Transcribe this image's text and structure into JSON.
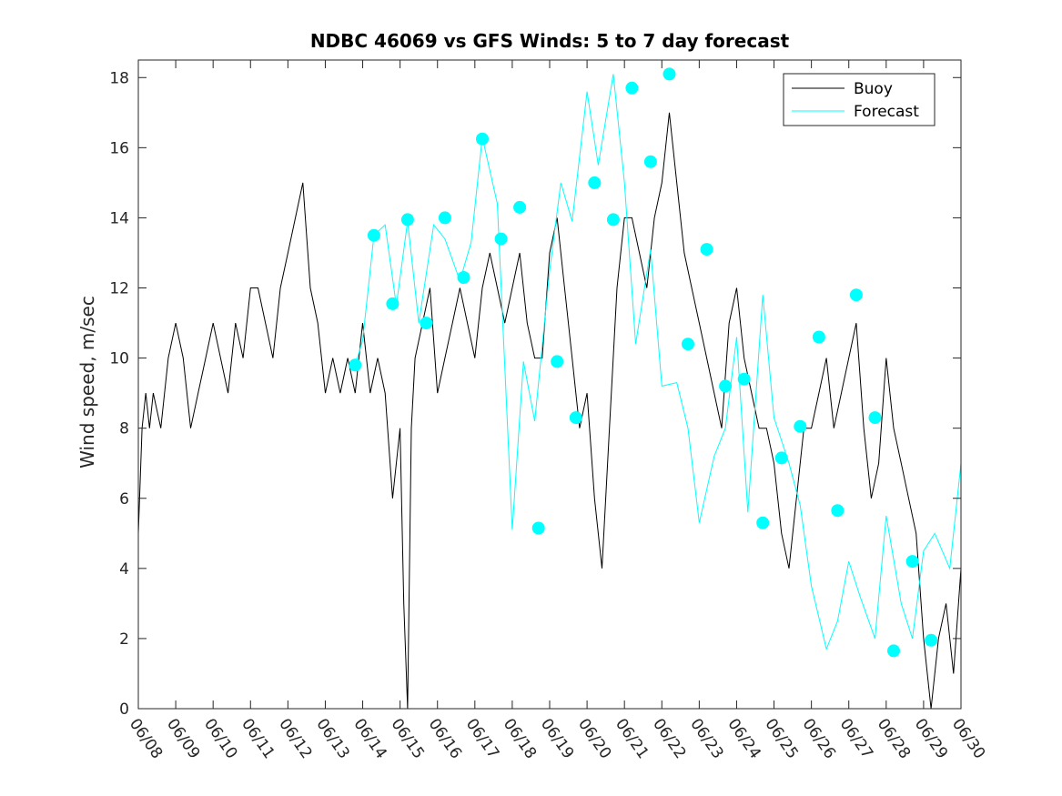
{
  "chart_data": {
    "type": "line",
    "title": "NDBC 46069 vs GFS Winds: 5 to 7 day forecast",
    "xlabel": "",
    "ylabel": "Wind speed, m/sec",
    "x_tick_labels": [
      "06/08",
      "06/09",
      "06/10",
      "06/11",
      "06/12",
      "06/13",
      "06/14",
      "06/15",
      "06/16",
      "06/17",
      "06/18",
      "06/19",
      "06/20",
      "06/21",
      "06/22",
      "06/23",
      "06/24",
      "06/25",
      "06/26",
      "06/27",
      "06/28",
      "06/29",
      "06/30"
    ],
    "xlim_days": [
      0,
      22
    ],
    "ylim": [
      0,
      18.5
    ],
    "y_ticks": [
      0,
      2,
      4,
      6,
      8,
      10,
      12,
      14,
      16,
      18
    ],
    "grid": false,
    "legend": "top-right",
    "colors": {
      "buoy": "#000000",
      "forecast": "#00ffff"
    },
    "series": [
      {
        "name": "Buoy",
        "x": [
          0,
          0.1,
          0.2,
          0.3,
          0.4,
          0.6,
          0.8,
          1.0,
          1.2,
          1.4,
          1.6,
          1.8,
          2.0,
          2.2,
          2.4,
          2.6,
          2.8,
          3.0,
          3.2,
          3.4,
          3.6,
          3.8,
          4.0,
          4.2,
          4.4,
          4.6,
          4.8,
          5.0,
          5.2,
          5.4,
          5.6,
          5.8,
          6.0,
          6.2,
          6.4,
          6.6,
          6.8,
          7.0,
          7.1,
          7.2,
          7.3,
          7.4,
          7.6,
          7.8,
          8.0,
          8.2,
          8.4,
          8.6,
          8.8,
          9.0,
          9.2,
          9.4,
          9.6,
          9.8,
          10.0,
          10.2,
          10.4,
          10.6,
          10.8,
          11.0,
          11.2,
          11.4,
          11.6,
          11.8,
          12.0,
          12.2,
          12.4,
          12.6,
          12.8,
          13.0,
          13.2,
          13.4,
          13.6,
          13.8,
          14.0,
          14.2,
          14.4,
          14.6,
          14.8,
          15.0,
          15.2,
          15.4,
          15.6,
          15.8,
          16.0,
          16.2,
          16.4,
          16.6,
          16.8,
          17.0,
          17.2,
          17.4,
          17.6,
          17.8,
          18.0,
          18.2,
          18.4,
          18.6,
          18.8,
          19.0,
          19.2,
          19.4,
          19.6,
          19.8,
          20.0,
          20.2,
          20.4,
          20.6,
          20.8,
          21.0,
          21.2,
          21.4,
          21.6,
          21.8,
          22.0
        ],
        "values": [
          5,
          8,
          9,
          8,
          9,
          8,
          10,
          11,
          10,
          8,
          9,
          10,
          11,
          10,
          9,
          11,
          10,
          12,
          12,
          11,
          10,
          12,
          13,
          14,
          15,
          12,
          11,
          9,
          10,
          9,
          10,
          9,
          11,
          9,
          10,
          9,
          6,
          8,
          3,
          0,
          8,
          10,
          11,
          12,
          9,
          10,
          11,
          12,
          11,
          10,
          12,
          13,
          12,
          11,
          12,
          13,
          11,
          10,
          10,
          13,
          14,
          12,
          10,
          8,
          9,
          6,
          4,
          8,
          12,
          14,
          14,
          13,
          12,
          14,
          15,
          17,
          15,
          13,
          12,
          11,
          10,
          9,
          8,
          11,
          12,
          10,
          9,
          8,
          8,
          7,
          5,
          4,
          6,
          8,
          8,
          9,
          10,
          8,
          9,
          10,
          11,
          8,
          6,
          7,
          10,
          8,
          7,
          6,
          5,
          2,
          0,
          2,
          3,
          1,
          4
        ]
      },
      {
        "name": "Forecast",
        "x": [
          5.8,
          6.0,
          6.3,
          6.6,
          6.9,
          7.2,
          7.5,
          7.9,
          8.2,
          8.6,
          8.9,
          9.2,
          9.6,
          10.0,
          10.3,
          10.6,
          11.0,
          11.3,
          11.6,
          12.0,
          12.3,
          12.7,
          13.0,
          13.3,
          13.7,
          14.0,
          14.4,
          14.7,
          15.0,
          15.4,
          15.7,
          16.0,
          16.3,
          16.7,
          17.0,
          17.4,
          17.7,
          18.0,
          18.4,
          18.7,
          19.0,
          19.3,
          19.7,
          20.0,
          20.4,
          20.7,
          21.0,
          21.3,
          21.7,
          22.0
        ],
        "values": [
          9.8,
          10.5,
          13.5,
          13.8,
          11.5,
          13.9,
          11.0,
          13.8,
          13.4,
          12.2,
          13.3,
          16.3,
          14.4,
          5.1,
          9.9,
          8.2,
          12.5,
          15.0,
          13.9,
          17.6,
          15.5,
          18.1,
          15.0,
          10.4,
          13.1,
          9.2,
          9.3,
          8.0,
          5.3,
          7.2,
          8.0,
          10.6,
          5.6,
          11.8,
          8.3,
          7.0,
          5.8,
          3.5,
          1.7,
          2.5,
          4.2,
          3.2,
          2.0,
          5.5,
          3.0,
          2.0,
          4.5,
          5.0,
          4.0,
          7.0
        ],
        "markers": [
          {
            "x": 5.8,
            "y": 9.8
          },
          {
            "x": 6.3,
            "y": 13.5
          },
          {
            "x": 6.8,
            "y": 11.55
          },
          {
            "x": 7.2,
            "y": 13.95
          },
          {
            "x": 7.7,
            "y": 11.0
          },
          {
            "x": 8.2,
            "y": 14.0
          },
          {
            "x": 8.7,
            "y": 12.3
          },
          {
            "x": 9.2,
            "y": 16.25
          },
          {
            "x": 9.7,
            "y": 13.4
          },
          {
            "x": 10.2,
            "y": 14.3
          },
          {
            "x": 10.7,
            "y": 5.15
          },
          {
            "x": 11.2,
            "y": 9.9
          },
          {
            "x": 11.7,
            "y": 8.3
          },
          {
            "x": 12.2,
            "y": 15.0
          },
          {
            "x": 12.7,
            "y": 13.95
          },
          {
            "x": 13.2,
            "y": 17.7
          },
          {
            "x": 13.7,
            "y": 15.6
          },
          {
            "x": 14.2,
            "y": 18.1
          },
          {
            "x": 14.7,
            "y": 10.4
          },
          {
            "x": 15.2,
            "y": 13.1
          },
          {
            "x": 15.7,
            "y": 9.2
          },
          {
            "x": 16.2,
            "y": 9.4
          },
          {
            "x": 16.7,
            "y": 5.3
          },
          {
            "x": 17.2,
            "y": 7.15
          },
          {
            "x": 17.7,
            "y": 8.05
          },
          {
            "x": 18.2,
            "y": 10.6
          },
          {
            "x": 18.7,
            "y": 5.65
          },
          {
            "x": 19.2,
            "y": 11.8
          },
          {
            "x": 19.7,
            "y": 8.3
          },
          {
            "x": 20.2,
            "y": 1.65
          },
          {
            "x": 20.7,
            "y": 4.2
          },
          {
            "x": 21.2,
            "y": 1.95
          }
        ]
      }
    ]
  }
}
